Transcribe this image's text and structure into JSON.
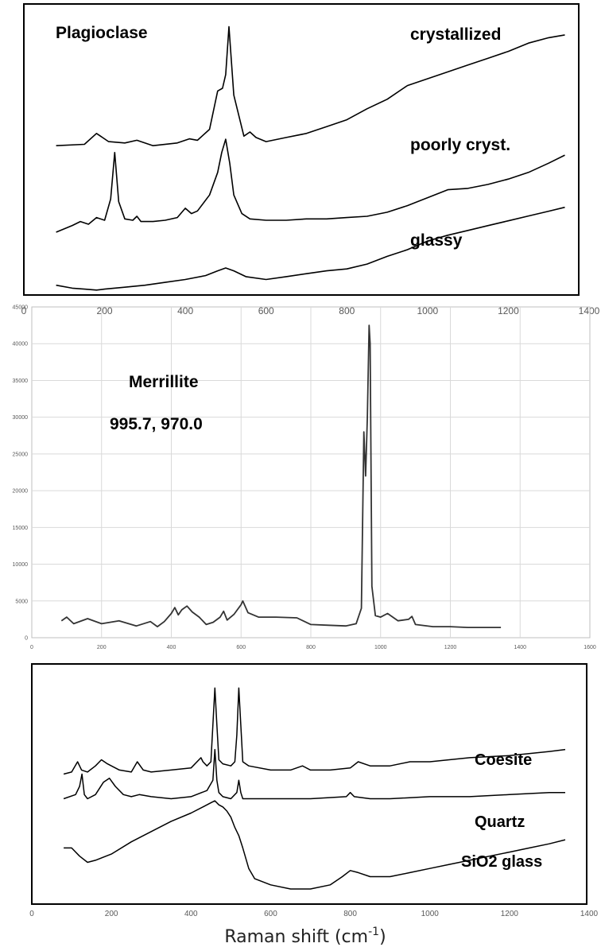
{
  "axis_title": {
    "main": "Raman shift (cm",
    "sup": "-1",
    "close": ")"
  },
  "chart_data": [
    {
      "type": "line",
      "label": "Plagioclase",
      "xlim": [
        0,
        1400
      ],
      "x_ticks": [
        "0",
        "200",
        "400",
        "600",
        "800",
        "1000",
        "1200",
        "1400"
      ],
      "y_ticks": [],
      "grid": false,
      "annotations": [
        "crystallized",
        "poorly cryst.",
        "glassy"
      ],
      "series": [
        {
          "name": "crystallized",
          "label_color": "#000000",
          "x": [
            80,
            150,
            180,
            210,
            250,
            280,
            320,
            380,
            410,
            430,
            460,
            480,
            492,
            500,
            508,
            520,
            545,
            560,
            575,
            600,
            650,
            700,
            750,
            800,
            850,
            900,
            950,
            1000,
            1050,
            1100,
            1150,
            1200,
            1250,
            1300,
            1340
          ],
          "y": [
            0.08,
            0.09,
            0.17,
            0.11,
            0.1,
            0.12,
            0.08,
            0.1,
            0.13,
            0.12,
            0.2,
            0.48,
            0.5,
            0.6,
            0.95,
            0.45,
            0.15,
            0.18,
            0.14,
            0.11,
            0.14,
            0.17,
            0.22,
            0.27,
            0.35,
            0.42,
            0.52,
            0.57,
            0.62,
            0.67,
            0.72,
            0.77,
            0.83,
            0.87,
            0.89
          ]
        },
        {
          "name": "poorly cryst.",
          "label_color": "#000000",
          "x": [
            80,
            120,
            140,
            160,
            180,
            200,
            215,
            225,
            235,
            250,
            270,
            280,
            290,
            320,
            350,
            380,
            400,
            415,
            430,
            460,
            480,
            490,
            500,
            510,
            520,
            540,
            560,
            600,
            650,
            700,
            750,
            800,
            850,
            900,
            950,
            1000,
            1050,
            1100,
            1150,
            1200,
            1250,
            1300,
            1340
          ],
          "y": [
            0.0,
            0.05,
            0.08,
            0.06,
            0.11,
            0.09,
            0.25,
            0.6,
            0.23,
            0.1,
            0.09,
            0.12,
            0.08,
            0.08,
            0.09,
            0.11,
            0.18,
            0.14,
            0.16,
            0.28,
            0.45,
            0.6,
            0.7,
            0.52,
            0.28,
            0.14,
            0.1,
            0.09,
            0.09,
            0.1,
            0.1,
            0.11,
            0.12,
            0.15,
            0.2,
            0.26,
            0.32,
            0.33,
            0.36,
            0.4,
            0.45,
            0.52,
            0.58
          ]
        },
        {
          "name": "glassy",
          "label_color": "#000000",
          "x": [
            80,
            120,
            150,
            180,
            200,
            250,
            300,
            350,
            400,
            450,
            480,
            500,
            520,
            550,
            600,
            650,
            700,
            750,
            800,
            850,
            900,
            950,
            1000,
            1050,
            1100,
            1150,
            1200,
            1250,
            1300,
            1340
          ],
          "y": [
            0.06,
            0.03,
            0.02,
            0.01,
            0.02,
            0.04,
            0.06,
            0.09,
            0.12,
            0.16,
            0.21,
            0.24,
            0.21,
            0.15,
            0.12,
            0.15,
            0.18,
            0.21,
            0.23,
            0.28,
            0.36,
            0.43,
            0.52,
            0.58,
            0.63,
            0.68,
            0.73,
            0.78,
            0.83,
            0.87
          ]
        }
      ]
    },
    {
      "type": "line",
      "label": "Merrillite",
      "peaks_label": "995.7, 970.0",
      "xlim": [
        0,
        1600
      ],
      "ylim": [
        0,
        45000
      ],
      "x_ticks": [
        "0",
        "200",
        "400",
        "600",
        "800",
        "1000",
        "1200",
        "1400",
        "1600"
      ],
      "y_ticks": [
        "0",
        "5000",
        "10000",
        "15000",
        "20000",
        "25000",
        "30000",
        "35000",
        "40000",
        "45000"
      ],
      "grid": true,
      "series": [
        {
          "name": "",
          "x": [
            85,
            100,
            120,
            160,
            200,
            250,
            300,
            340,
            360,
            380,
            400,
            410,
            420,
            430,
            445,
            460,
            480,
            500,
            520,
            540,
            550,
            560,
            580,
            600,
            605,
            620,
            650,
            700,
            760,
            800,
            850,
            900,
            930,
            945,
            952,
            957,
            962,
            967,
            970,
            975,
            985,
            1000,
            1020,
            1050,
            1080,
            1090,
            1100,
            1150,
            1200,
            1250,
            1300,
            1345
          ],
          "y": [
            2300,
            2800,
            1900,
            2600,
            1900,
            2300,
            1600,
            2200,
            1500,
            2200,
            3300,
            4100,
            3100,
            3800,
            4300,
            3500,
            2800,
            1800,
            2100,
            2800,
            3600,
            2400,
            3200,
            4500,
            5000,
            3400,
            2800,
            2800,
            2700,
            1800,
            1700,
            1600,
            1900,
            4000,
            28000,
            22000,
            30000,
            42500,
            40000,
            7000,
            3000,
            2800,
            3300,
            2300,
            2500,
            2900,
            1800,
            1500,
            1500,
            1400,
            1400,
            1400
          ]
        }
      ]
    },
    {
      "type": "line",
      "label": "SiO2",
      "xlim": [
        0,
        1400
      ],
      "x_ticks": [
        "0",
        "200",
        "400",
        "600",
        "800",
        "1000",
        "1200",
        "1400"
      ],
      "y_ticks": [],
      "grid": false,
      "annotations": [
        "Coesite",
        "Quartz",
        "SiO2 glass"
      ],
      "xlabel": "Raman shift (cm-1)",
      "series": [
        {
          "name": "Coesite",
          "x": [
            80,
            100,
            115,
            125,
            140,
            160,
            175,
            190,
            200,
            220,
            250,
            265,
            280,
            300,
            350,
            400,
            425,
            430,
            440,
            450,
            455,
            460,
            465,
            470,
            480,
            500,
            510,
            515,
            520,
            525,
            530,
            545,
            600,
            650,
            680,
            700,
            750,
            800,
            820,
            850,
            900,
            950,
            1000,
            1100,
            1200,
            1300,
            1340
          ],
          "y": [
            0.56,
            0.57,
            0.62,
            0.58,
            0.57,
            0.6,
            0.63,
            0.61,
            0.6,
            0.58,
            0.57,
            0.62,
            0.58,
            0.57,
            0.58,
            0.59,
            0.64,
            0.62,
            0.6,
            0.62,
            0.8,
            0.98,
            0.8,
            0.63,
            0.61,
            0.6,
            0.62,
            0.75,
            0.98,
            0.8,
            0.62,
            0.6,
            0.58,
            0.58,
            0.6,
            0.58,
            0.58,
            0.59,
            0.62,
            0.6,
            0.6,
            0.62,
            0.62,
            0.64,
            0.65,
            0.67,
            0.68
          ]
        },
        {
          "name": "Quartz",
          "x": [
            80,
            110,
            120,
            126,
            132,
            140,
            160,
            180,
            195,
            210,
            230,
            250,
            270,
            300,
            350,
            400,
            440,
            455,
            460,
            465,
            470,
            480,
            500,
            515,
            520,
            525,
            530,
            550,
            600,
            700,
            790,
            800,
            810,
            850,
            900,
            1000,
            1100,
            1200,
            1300,
            1340
          ],
          "y": [
            0.44,
            0.46,
            0.5,
            0.56,
            0.46,
            0.44,
            0.46,
            0.52,
            0.54,
            0.5,
            0.46,
            0.45,
            0.46,
            0.45,
            0.44,
            0.45,
            0.48,
            0.53,
            0.68,
            0.53,
            0.47,
            0.45,
            0.44,
            0.47,
            0.53,
            0.47,
            0.44,
            0.44,
            0.44,
            0.44,
            0.45,
            0.47,
            0.45,
            0.44,
            0.44,
            0.45,
            0.45,
            0.46,
            0.47,
            0.47
          ]
        },
        {
          "name": "SiO2 glass",
          "x": [
            80,
            100,
            120,
            140,
            160,
            200,
            250,
            300,
            350,
            400,
            430,
            450,
            460,
            470,
            480,
            490,
            500,
            510,
            520,
            530,
            545,
            560,
            600,
            650,
            700,
            750,
            780,
            800,
            820,
            850,
            900,
            950,
            1000,
            1050,
            1100,
            1150,
            1200,
            1250,
            1300,
            1340
          ],
          "y": [
            0.2,
            0.2,
            0.16,
            0.13,
            0.14,
            0.17,
            0.23,
            0.28,
            0.33,
            0.37,
            0.4,
            0.42,
            0.43,
            0.41,
            0.4,
            0.38,
            0.35,
            0.3,
            0.26,
            0.2,
            0.1,
            0.05,
            0.02,
            0.0,
            0.0,
            0.02,
            0.06,
            0.09,
            0.08,
            0.06,
            0.06,
            0.08,
            0.1,
            0.12,
            0.14,
            0.16,
            0.18,
            0.2,
            0.22,
            0.24
          ]
        }
      ]
    }
  ]
}
